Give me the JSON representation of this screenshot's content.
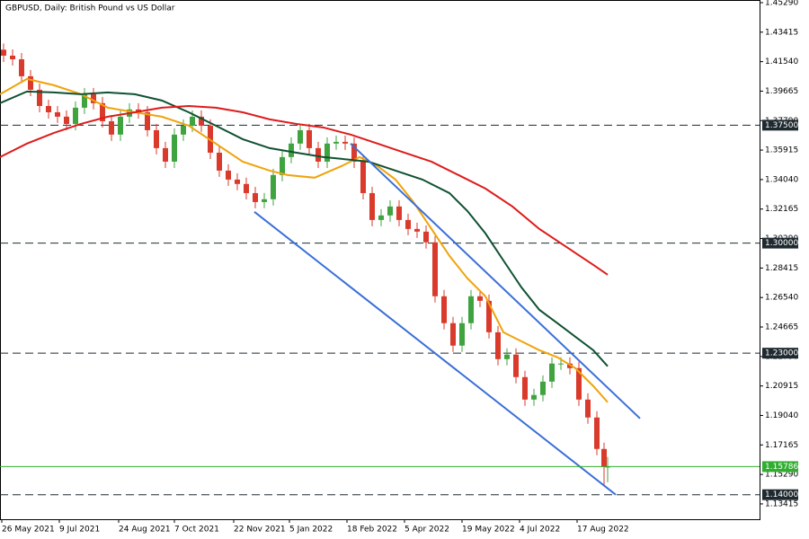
{
  "chart_data": {
    "type": "candlestick",
    "title": "GBPUSD, Daily:  British Pound vs US Dollar",
    "xlim": [
      0,
      422.5
    ],
    "ylim": [
      1.1244,
      1.4546
    ],
    "xticks": [
      {
        "value": 1,
        "label": "26 May 2021"
      },
      {
        "value": 33,
        "label": "9 Jul 2021"
      },
      {
        "value": 66,
        "label": "24 Aug 2021"
      },
      {
        "value": 97,
        "label": "7 Oct 2021"
      },
      {
        "value": 130,
        "label": "22 Nov 2021"
      },
      {
        "value": 161,
        "label": "5 Jan 2022"
      },
      {
        "value": 193,
        "label": "18 Feb 2022"
      },
      {
        "value": 225,
        "label": "5 Apr 2022"
      },
      {
        "value": 257,
        "label": "19 May 2022"
      },
      {
        "value": 289,
        "label": "4 Jul 2022"
      },
      {
        "value": 321,
        "label": "17 Aug 2022"
      }
    ],
    "yticks": [
      {
        "value": 1.4529,
        "label": "1.45290"
      },
      {
        "value": 1.43415,
        "label": "1.43415"
      },
      {
        "value": 1.4154,
        "label": "1.41540"
      },
      {
        "value": 1.39665,
        "label": "1.39665"
      },
      {
        "value": 1.3779,
        "label": "1.37790"
      },
      {
        "value": 1.35915,
        "label": "1.35915"
      },
      {
        "value": 1.3404,
        "label": "1.34040"
      },
      {
        "value": 1.32165,
        "label": "1.32165"
      },
      {
        "value": 1.3029,
        "label": "1.30290"
      },
      {
        "value": 1.28415,
        "label": "1.28415"
      },
      {
        "value": 1.2654,
        "label": "1.26540"
      },
      {
        "value": 1.24665,
        "label": "1.24665"
      },
      {
        "value": 1.2279,
        "label": "1.22790"
      },
      {
        "value": 1.20915,
        "label": "1.20915"
      },
      {
        "value": 1.1904,
        "label": "1.19040"
      },
      {
        "value": 1.17165,
        "label": "1.17165"
      },
      {
        "value": 1.1529,
        "label": "1.15290"
      },
      {
        "value": 1.13415,
        "label": "1.13415"
      }
    ],
    "up_color": "#3fa33f",
    "down_color": "#d93a2b",
    "x": [
      2,
      7,
      12,
      17,
      22,
      27,
      32,
      37,
      42,
      47,
      52,
      57,
      62,
      67,
      72,
      77,
      82,
      87,
      92,
      97,
      102,
      107,
      112,
      117,
      122,
      127,
      132,
      137,
      142,
      147,
      152,
      157,
      162,
      167,
      172,
      177,
      182,
      187,
      192,
      197,
      202,
      207,
      212,
      217,
      222,
      227,
      232,
      237,
      242,
      247,
      252,
      257,
      262,
      267,
      272,
      277,
      282,
      287,
      292,
      297,
      302,
      307,
      312,
      317,
      322,
      327,
      332,
      336,
      338
    ],
    "open": [
      1.423,
      1.4192,
      1.4169,
      1.4061,
      1.3975,
      1.3872,
      1.3832,
      1.3804,
      1.3758,
      1.3861,
      1.3947,
      1.389,
      1.3775,
      1.369,
      1.3804,
      1.385,
      1.3832,
      1.3718,
      1.3604,
      1.3518,
      1.369,
      1.3747,
      1.3804,
      1.3747,
      1.3575,
      1.3461,
      1.3404,
      1.3376,
      1.3318,
      1.3261,
      1.3279,
      1.3433,
      1.3547,
      1.3633,
      1.3718,
      1.3604,
      1.3518,
      1.3633,
      1.3644,
      1.3633,
      1.3518,
      1.3318,
      1.3147,
      1.3176,
      1.3233,
      1.3147,
      1.309,
      1.3073,
      1.3005,
      1.2662,
      1.2491,
      1.2348,
      1.2491,
      1.2662,
      1.2633,
      1.2433,
      1.2262,
      1.2291,
      1.2148,
      1.2005,
      1.2034,
      1.2119,
      1.2234,
      1.2234,
      1.2205,
      1.2005,
      1.1891,
      1.1691,
      1.1577
    ],
    "high": [
      1.427,
      1.4232,
      1.4209,
      1.4101,
      1.4015,
      1.3912,
      1.3872,
      1.3844,
      1.3901,
      1.3987,
      1.3987,
      1.393,
      1.3815,
      1.3844,
      1.389,
      1.389,
      1.3872,
      1.3758,
      1.3644,
      1.373,
      1.3787,
      1.3844,
      1.3844,
      1.3787,
      1.3615,
      1.3501,
      1.3444,
      1.3416,
      1.3358,
      1.3319,
      1.3473,
      1.3587,
      1.3673,
      1.3758,
      1.3758,
      1.3644,
      1.3673,
      1.3684,
      1.3684,
      1.3673,
      1.3558,
      1.3358,
      1.3216,
      1.3273,
      1.3273,
      1.3187,
      1.313,
      1.3113,
      1.3045,
      1.2702,
      1.2531,
      1.2531,
      1.2702,
      1.2702,
      1.2673,
      1.2473,
      1.2331,
      1.2331,
      1.2188,
      1.2074,
      1.2159,
      1.2274,
      1.2274,
      1.2274,
      1.2245,
      1.2045,
      1.1931,
      1.1731,
      1.164
    ],
    "low": [
      1.4152,
      1.4129,
      1.4021,
      1.3935,
      1.3832,
      1.3792,
      1.3764,
      1.3718,
      1.3718,
      1.3821,
      1.385,
      1.3735,
      1.365,
      1.365,
      1.3764,
      1.3792,
      1.3678,
      1.3564,
      1.3478,
      1.3478,
      1.365,
      1.3707,
      1.3707,
      1.3535,
      1.3421,
      1.3364,
      1.3336,
      1.3278,
      1.3221,
      1.3221,
      1.3239,
      1.3393,
      1.3507,
      1.3593,
      1.3564,
      1.3478,
      1.3478,
      1.3593,
      1.3593,
      1.3478,
      1.3278,
      1.3107,
      1.3107,
      1.3136,
      1.3107,
      1.305,
      1.3033,
      1.2965,
      1.2622,
      1.2451,
      1.2308,
      1.2308,
      1.2451,
      1.2593,
      1.2393,
      1.2222,
      1.2222,
      1.2108,
      1.1965,
      1.1965,
      1.1994,
      1.2079,
      1.2194,
      1.2165,
      1.1965,
      1.1851,
      1.1651,
      1.146,
      1.148
    ],
    "close": [
      1.4192,
      1.4169,
      1.4061,
      1.3975,
      1.3872,
      1.3832,
      1.3804,
      1.3758,
      1.3861,
      1.3947,
      1.389,
      1.3775,
      1.369,
      1.3804,
      1.385,
      1.3832,
      1.3718,
      1.3604,
      1.3518,
      1.369,
      1.3747,
      1.3804,
      1.3747,
      1.3575,
      1.3461,
      1.3404,
      1.3376,
      1.3318,
      1.3261,
      1.3279,
      1.3433,
      1.3547,
      1.3633,
      1.3718,
      1.3604,
      1.3518,
      1.3633,
      1.3644,
      1.3633,
      1.3518,
      1.3318,
      1.3147,
      1.3176,
      1.3233,
      1.3147,
      1.309,
      1.3073,
      1.3005,
      1.2662,
      1.2491,
      1.2348,
      1.2491,
      1.2662,
      1.2633,
      1.2433,
      1.2262,
      1.2291,
      1.2148,
      1.2005,
      1.2034,
      1.2119,
      1.2234,
      1.2234,
      1.2205,
      1.2005,
      1.1891,
      1.1691,
      1.1577,
      1.1579
    ],
    "series": [
      {
        "color": "#f0a30a",
        "x": [
          0,
          15,
          30,
          45,
          60,
          75,
          90,
          105,
          120,
          135,
          150,
          160,
          175,
          190,
          200,
          210,
          220,
          230,
          240,
          250,
          260,
          270,
          280,
          290,
          300,
          310,
          320,
          330,
          338
        ],
        "values": [
          1.3947,
          1.4044,
          1.4004,
          1.3947,
          1.3861,
          1.3832,
          1.3804,
          1.3747,
          1.3633,
          1.3518,
          1.3461,
          1.3433,
          1.3416,
          1.349,
          1.3547,
          1.349,
          1.3404,
          1.3261,
          1.309,
          1.2919,
          1.2776,
          1.2662,
          1.2433,
          1.2376,
          1.2319,
          1.2274,
          1.2205,
          1.2091,
          1.1988
        ]
      },
      {
        "color": "#0f5132",
        "x": [
          0,
          15,
          30,
          45,
          60,
          75,
          90,
          105,
          120,
          135,
          150,
          165,
          180,
          195,
          205,
          220,
          235,
          250,
          260,
          270,
          280,
          290,
          300,
          310,
          320,
          330,
          338
        ],
        "values": [
          1.389,
          1.3964,
          1.3958,
          1.3947,
          1.3958,
          1.3947,
          1.3907,
          1.3832,
          1.3747,
          1.3661,
          1.3604,
          1.3575,
          1.3547,
          1.353,
          1.3518,
          1.3461,
          1.3404,
          1.3318,
          1.3204,
          1.3062,
          1.289,
          1.2719,
          1.2576,
          1.2491,
          1.2405,
          1.2319,
          1.2217
        ]
      },
      {
        "color": "#dd1b1b",
        "x": [
          0,
          15,
          30,
          45,
          60,
          75,
          90,
          105,
          120,
          135,
          150,
          165,
          180,
          195,
          210,
          225,
          240,
          255,
          270,
          285,
          300,
          315,
          330,
          338
        ],
        "values": [
          1.3547,
          1.3633,
          1.3701,
          1.3758,
          1.3804,
          1.3832,
          1.3861,
          1.3872,
          1.3861,
          1.3832,
          1.3787,
          1.3758,
          1.3735,
          1.369,
          1.3633,
          1.3575,
          1.3518,
          1.3433,
          1.3347,
          1.3233,
          1.309,
          1.2976,
          1.2862,
          1.2799
        ]
      }
    ],
    "trend_color": "#3a6fd8",
    "trend_lines": [
      {
        "x": [
          195,
          356
        ],
        "values": [
          1.3633,
          1.1885
        ]
      },
      {
        "x": [
          141.5,
          342.5
        ],
        "values": [
          1.3199,
          1.14
        ]
      }
    ],
    "level_color": "#1f2a30",
    "levels": [
      {
        "value": 1.375,
        "label": "1.37500"
      },
      {
        "value": 1.3,
        "label": "1.30000"
      },
      {
        "value": 1.23,
        "label": "1.23000"
      },
      {
        "value": 1.14,
        "label": "1.14000"
      }
    ],
    "current_price": 1.15786,
    "current_color": "#2fae2f"
  }
}
